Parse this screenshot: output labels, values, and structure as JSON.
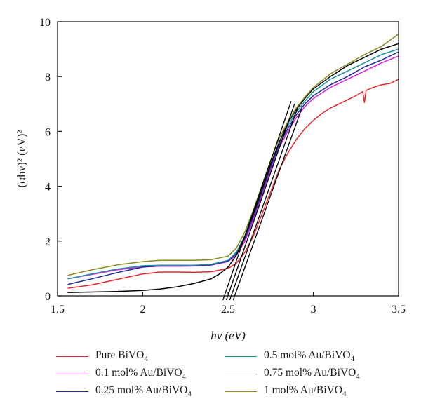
{
  "chart_data": {
    "type": "line",
    "xlabel": "hν (eV)",
    "ylabel": "(αhν)² (eV)²",
    "xlim": [
      1.5,
      3.5
    ],
    "ylim": [
      0,
      10
    ],
    "x_ticks": [
      "1.5",
      "2",
      "2.5",
      "3",
      "3.5"
    ],
    "y_ticks": [
      "0",
      "2",
      "4",
      "6",
      "8",
      "10"
    ],
    "grid": false,
    "legend_position": "bottom",
    "series": [
      {
        "name": "Pure BiVO4",
        "color": "#e8262c",
        "x": [
          1.56,
          1.7,
          1.85,
          2.0,
          2.1,
          2.2,
          2.3,
          2.4,
          2.5,
          2.55,
          2.6,
          2.65,
          2.7,
          2.75,
          2.8,
          2.85,
          2.9,
          2.95,
          3.0,
          3.05,
          3.1,
          3.15,
          3.2,
          3.25,
          3.29,
          3.3,
          3.31,
          3.35,
          3.4,
          3.45,
          3.5
        ],
        "y": [
          0.28,
          0.4,
          0.6,
          0.8,
          0.87,
          0.87,
          0.86,
          0.88,
          1.0,
          1.2,
          1.6,
          2.2,
          3.0,
          3.8,
          4.6,
          5.2,
          5.7,
          6.1,
          6.4,
          6.65,
          6.85,
          7.0,
          7.15,
          7.3,
          7.45,
          7.05,
          7.5,
          7.6,
          7.7,
          7.75,
          7.9
        ]
      },
      {
        "name": "0.1 mol% Au/BiVO4",
        "color": "#e020e0",
        "x": [
          1.56,
          1.7,
          1.85,
          2.0,
          2.1,
          2.2,
          2.3,
          2.4,
          2.5,
          2.55,
          2.6,
          2.65,
          2.7,
          2.75,
          2.8,
          2.85,
          2.9,
          2.95,
          3.0,
          3.1,
          3.2,
          3.3,
          3.4,
          3.5
        ],
        "y": [
          0.62,
          0.78,
          0.95,
          1.06,
          1.08,
          1.08,
          1.09,
          1.12,
          1.25,
          1.5,
          2.0,
          2.8,
          3.7,
          4.6,
          5.4,
          6.0,
          6.5,
          6.9,
          7.2,
          7.6,
          7.9,
          8.2,
          8.5,
          8.75
        ]
      },
      {
        "name": "0.25 mol% Au/BiVO4",
        "color": "#1c2a9e",
        "x": [
          1.56,
          1.7,
          1.85,
          2.0,
          2.1,
          2.2,
          2.3,
          2.4,
          2.5,
          2.55,
          2.6,
          2.65,
          2.7,
          2.75,
          2.8,
          2.85,
          2.9,
          2.95,
          3.0,
          3.1,
          3.2,
          3.3,
          3.4,
          3.5
        ],
        "y": [
          0.42,
          0.62,
          0.85,
          1.05,
          1.1,
          1.1,
          1.1,
          1.13,
          1.27,
          1.55,
          2.1,
          2.9,
          3.8,
          4.7,
          5.5,
          6.1,
          6.6,
          7.0,
          7.3,
          7.7,
          8.0,
          8.35,
          8.6,
          8.9
        ]
      },
      {
        "name": "0.5 mol% Au/BiVO4",
        "color": "#1a8fa0",
        "x": [
          1.56,
          1.7,
          1.85,
          2.0,
          2.1,
          2.2,
          2.3,
          2.4,
          2.5,
          2.55,
          2.6,
          2.65,
          2.7,
          2.75,
          2.8,
          2.85,
          2.9,
          2.95,
          3.0,
          3.1,
          3.2,
          3.3,
          3.4,
          3.5
        ],
        "y": [
          0.62,
          0.8,
          0.98,
          1.1,
          1.12,
          1.12,
          1.12,
          1.15,
          1.3,
          1.6,
          2.2,
          3.0,
          3.9,
          4.8,
          5.6,
          6.2,
          6.7,
          7.1,
          7.45,
          7.9,
          8.2,
          8.5,
          8.8,
          9.0
        ]
      },
      {
        "name": "0.75 mol% Au/BiVO4",
        "color": "#000000",
        "x": [
          1.56,
          1.7,
          1.85,
          2.0,
          2.1,
          2.2,
          2.3,
          2.4,
          2.45,
          2.5,
          2.55,
          2.6,
          2.65,
          2.7,
          2.75,
          2.8,
          2.85,
          2.9,
          2.95,
          3.0,
          3.1,
          3.2,
          3.3,
          3.4,
          3.5
        ],
        "y": [
          0.12,
          0.14,
          0.16,
          0.2,
          0.25,
          0.33,
          0.45,
          0.62,
          0.8,
          1.05,
          1.5,
          2.2,
          3.0,
          3.9,
          4.8,
          5.6,
          6.3,
          6.8,
          7.2,
          7.55,
          8.0,
          8.4,
          8.7,
          9.0,
          9.2
        ]
      },
      {
        "name": "1 mol% Au/BiVO4",
        "color": "#8a8a20",
        "x": [
          1.56,
          1.7,
          1.85,
          2.0,
          2.1,
          2.2,
          2.3,
          2.4,
          2.5,
          2.55,
          2.6,
          2.65,
          2.7,
          2.75,
          2.8,
          2.85,
          2.9,
          2.95,
          3.0,
          3.1,
          3.2,
          3.3,
          3.4,
          3.5
        ],
        "y": [
          0.75,
          0.95,
          1.13,
          1.25,
          1.3,
          1.3,
          1.3,
          1.32,
          1.45,
          1.75,
          2.35,
          3.15,
          4.05,
          4.95,
          5.75,
          6.35,
          6.85,
          7.25,
          7.6,
          8.1,
          8.45,
          8.8,
          9.1,
          9.55
        ]
      }
    ],
    "tangent_lines": [
      {
        "color": "#000000",
        "x": [
          2.47,
          2.87
        ],
        "y": [
          0.0,
          7.1
        ]
      },
      {
        "color": "#000000",
        "x": [
          2.49,
          2.89
        ],
        "y": [
          0.0,
          7.0
        ]
      },
      {
        "color": "#000000",
        "x": [
          2.51,
          2.91
        ],
        "y": [
          0.0,
          6.9
        ]
      },
      {
        "color": "#000000",
        "x": [
          2.53,
          2.93
        ],
        "y": [
          0.0,
          6.8
        ]
      }
    ]
  },
  "legend": [
    {
      "name": "Pure BiVO",
      "sub": "4",
      "color": "#e8262c"
    },
    {
      "name": "0.1 mol% Au/BiVO",
      "sub": "4",
      "color": "#e020e0"
    },
    {
      "name": "0.25 mol% Au/BiVO",
      "sub": "4",
      "color": "#1c2a9e"
    },
    {
      "name": "0.5 mol% Au/BiVO",
      "sub": "4",
      "color": "#1a8fa0"
    },
    {
      "name": "0.75 mol% Au/BiVO",
      "sub": "4",
      "color": "#000000"
    },
    {
      "name": "1 mol% Au/BiVO",
      "sub": "4",
      "color": "#8a8a20"
    }
  ]
}
